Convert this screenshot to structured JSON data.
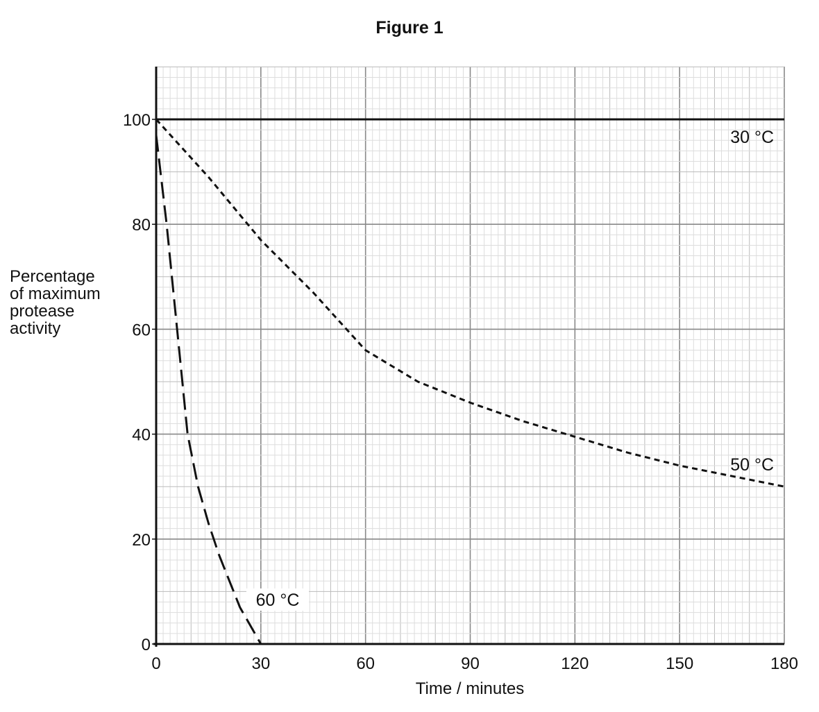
{
  "figure_title": "Figure 1",
  "chart_data": {
    "type": "line",
    "title": "Figure 1",
    "xlabel": "Time / minutes",
    "ylabel": "Percentage of maximum protease activity",
    "ylabel_lines": [
      "Percentage",
      "of maximum",
      "protease",
      "activity"
    ],
    "xlim": [
      0,
      180
    ],
    "ylim": [
      0,
      110
    ],
    "xticks": [
      0,
      30,
      60,
      90,
      120,
      150,
      180
    ],
    "yticks": [
      0,
      20,
      40,
      60,
      80,
      100
    ],
    "grid": true,
    "series": [
      {
        "name": "30 °C",
        "style": "solid",
        "x": [
          0,
          180
        ],
        "y": [
          100,
          100
        ]
      },
      {
        "name": "50 °C",
        "style": "short-dash",
        "x": [
          0,
          15,
          30,
          45,
          60,
          75,
          90,
          105,
          120,
          135,
          150,
          165,
          180
        ],
        "y": [
          100,
          89,
          77,
          67,
          56,
          50,
          46,
          42.5,
          39.5,
          36.5,
          34,
          32,
          30
        ]
      },
      {
        "name": "60 °C",
        "style": "long-dash",
        "x": [
          0,
          3,
          6,
          9,
          12,
          15,
          18,
          21,
          24,
          27,
          30
        ],
        "y": [
          97,
          80,
          60,
          40,
          30,
          23,
          17,
          12,
          7,
          3.5,
          0
        ]
      }
    ],
    "annotations": [
      "30 °C",
      "50 °C",
      "60 °C"
    ]
  }
}
